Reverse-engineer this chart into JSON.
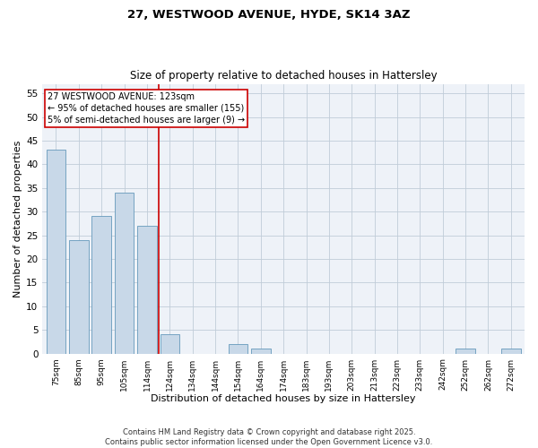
{
  "title1": "27, WESTWOOD AVENUE, HYDE, SK14 3AZ",
  "title2": "Size of property relative to detached houses in Hattersley",
  "xlabel": "Distribution of detached houses by size in Hattersley",
  "ylabel": "Number of detached properties",
  "categories": [
    "75sqm",
    "85sqm",
    "95sqm",
    "105sqm",
    "114sqm",
    "124sqm",
    "134sqm",
    "144sqm",
    "154sqm",
    "164sqm",
    "174sqm",
    "183sqm",
    "193sqm",
    "203sqm",
    "213sqm",
    "223sqm",
    "233sqm",
    "242sqm",
    "252sqm",
    "262sqm",
    "272sqm"
  ],
  "values": [
    43,
    24,
    29,
    34,
    27,
    4,
    0,
    0,
    2,
    1,
    0,
    0,
    0,
    0,
    0,
    0,
    0,
    0,
    1,
    0,
    1
  ],
  "bar_color": "#c8d8e8",
  "bar_edgecolor": "#6699bb",
  "vline_color": "#cc0000",
  "annotation_text": "27 WESTWOOD AVENUE: 123sqm\n← 95% of detached houses are smaller (155)\n5% of semi-detached houses are larger (9) →",
  "annotation_box_color": "#ffffff",
  "annotation_box_edgecolor": "#cc0000",
  "ylim": [
    0,
    57
  ],
  "yticks": [
    0,
    5,
    10,
    15,
    20,
    25,
    30,
    35,
    40,
    45,
    50,
    55
  ],
  "grid_color": "#c0ccd8",
  "background_color": "#eef2f8",
  "footer": "Contains HM Land Registry data © Crown copyright and database right 2025.\nContains public sector information licensed under the Open Government Licence v3.0."
}
